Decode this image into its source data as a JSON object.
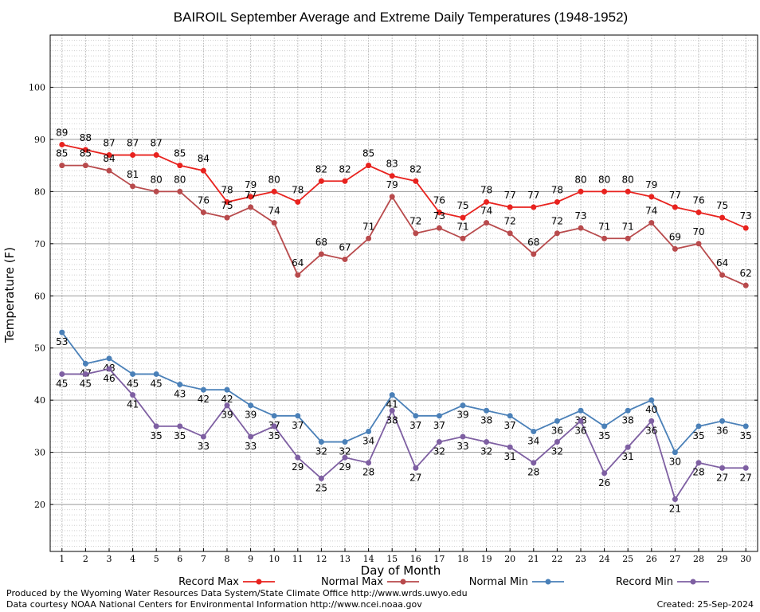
{
  "chart_data": {
    "type": "line",
    "title": "BAIROIL September Average and Extreme Daily Temperatures (1948-1952)",
    "xlabel": "Day of Month",
    "ylabel": "Temperature (F)",
    "x": [
      1,
      2,
      3,
      4,
      5,
      6,
      7,
      8,
      9,
      10,
      11,
      12,
      13,
      14,
      15,
      16,
      17,
      18,
      19,
      20,
      21,
      22,
      23,
      24,
      25,
      26,
      27,
      28,
      29,
      30
    ],
    "xlim": [
      0.5,
      30.5
    ],
    "ylim": [
      11,
      110
    ],
    "yticks": [
      20,
      30,
      40,
      50,
      60,
      70,
      80,
      90,
      100
    ],
    "grid": true,
    "legend_position": "bottom",
    "series": [
      {
        "name": "Record Max",
        "color": "#e8221e",
        "values": [
          89,
          88,
          87,
          87,
          87,
          85,
          84,
          78,
          79,
          80,
          78,
          82,
          82,
          85,
          83,
          82,
          76,
          75,
          78,
          77,
          77,
          78,
          80,
          80,
          80,
          79,
          77,
          76,
          75,
          73
        ]
      },
      {
        "name": "Normal Max",
        "color": "#b84a4c",
        "values": [
          85,
          85,
          84,
          81,
          80,
          80,
          76,
          75,
          77,
          74,
          64,
          68,
          67,
          71,
          79,
          72,
          73,
          71,
          74,
          72,
          68,
          72,
          73,
          71,
          71,
          74,
          69,
          70,
          64,
          62
        ]
      },
      {
        "name": "Normal Min",
        "color": "#4a80b8",
        "values": [
          53,
          47,
          48,
          45,
          45,
          43,
          42,
          42,
          39,
          37,
          37,
          32,
          32,
          34,
          41,
          37,
          37,
          39,
          38,
          37,
          34,
          36,
          38,
          35,
          38,
          40,
          30,
          35,
          36,
          35
        ]
      },
      {
        "name": "Record Min",
        "color": "#7e5fa2",
        "values": [
          45,
          45,
          46,
          41,
          35,
          35,
          33,
          39,
          33,
          35,
          29,
          25,
          29,
          28,
          38,
          27,
          32,
          33,
          32,
          31,
          28,
          32,
          36,
          26,
          31,
          36,
          21,
          28,
          27,
          27
        ]
      }
    ]
  },
  "footer": {
    "line1": "Produced by the Wyoming Water Resources Data System/State Climate Office http://www.wrds.uwyo.edu",
    "line2": "Data courtesy NOAA National Centers for Environmental Information http://www.ncei.noaa.gov",
    "created": "Created:  25-Sep-2024"
  }
}
